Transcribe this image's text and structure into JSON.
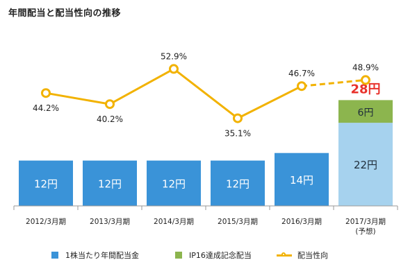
{
  "title": "年間配当と配当性向の推移",
  "colors": {
    "bar": "#3a93d8",
    "bar_forecast": "#a6d2ee",
    "commemorative": "#8cb54e",
    "line": "#f2b200",
    "total_label": "#e8322b",
    "axis": "#999999"
  },
  "chart_data": {
    "type": "bar",
    "categories": [
      "2012/3月期",
      "2013/3月期",
      "2014/3月期",
      "2015/3月期",
      "2016/3月期",
      "2017/3月期"
    ],
    "category_notes": [
      "",
      "",
      "",
      "",
      "",
      "(予想)"
    ],
    "series": [
      {
        "name": "1株当たり年間配当金",
        "values": [
          12,
          12,
          12,
          12,
          14,
          22
        ],
        "value_labels": [
          "12円",
          "12円",
          "12円",
          "12円",
          "14円",
          "22円"
        ]
      },
      {
        "name": "IP16達成記念配当",
        "values": [
          0,
          0,
          0,
          0,
          0,
          6
        ],
        "value_labels": [
          "",
          "",
          "",
          "",
          "",
          "6円"
        ]
      },
      {
        "name": "配当性向",
        "type": "line",
        "unit": "%",
        "values": [
          44.2,
          40.2,
          52.9,
          35.1,
          46.7,
          48.9
        ],
        "value_labels": [
          "44.2%",
          "40.2%",
          "52.9%",
          "35.1%",
          "46.7%",
          "48.9%"
        ],
        "forecast_from_index": 4
      }
    ],
    "stack_total_labels": [
      "",
      "",
      "",
      "",
      "",
      "28円"
    ],
    "legend": [
      "1株当たり年間配当金",
      "IP16達成記念配当",
      "配当性向"
    ],
    "legend_position": "bottom",
    "grid": false
  }
}
